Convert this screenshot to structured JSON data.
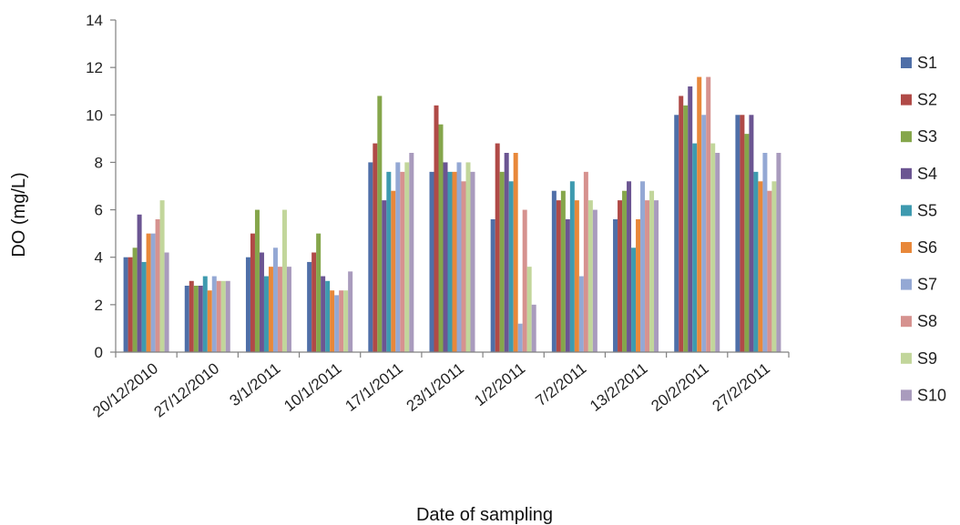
{
  "chart_data": {
    "type": "bar",
    "title": "",
    "xlabel": "Date of sampling",
    "ylabel": "DO (mg/L)",
    "ylim": [
      0,
      14
    ],
    "yticks": [
      "0",
      "2",
      "4",
      "6",
      "8",
      "10",
      "12",
      "14"
    ],
    "grid": false,
    "legend_position": "right",
    "categories": [
      "20/12/2010",
      "27/12/2010",
      "3/1/2011",
      "10/1/2011",
      "17/1/2011",
      "23/1/2011",
      "1/2/2011",
      "7/2/2011",
      "13/2/2011",
      "20/2/2011",
      "27/2/2011"
    ],
    "series": [
      {
        "name": "S1",
        "color": "#4f6fa8",
        "values": [
          4.0,
          2.8,
          4.0,
          3.8,
          8.0,
          7.6,
          5.6,
          6.8,
          5.6,
          10.0,
          10.0
        ]
      },
      {
        "name": "S2",
        "color": "#b04a47",
        "values": [
          4.0,
          3.0,
          5.0,
          4.2,
          8.8,
          10.4,
          8.8,
          6.4,
          6.4,
          10.8,
          10.0
        ]
      },
      {
        "name": "S3",
        "color": "#85a64b",
        "values": [
          4.4,
          2.8,
          6.0,
          5.0,
          10.8,
          9.6,
          7.6,
          6.8,
          6.8,
          10.4,
          9.2
        ]
      },
      {
        "name": "S4",
        "color": "#6b5592",
        "values": [
          5.8,
          2.8,
          4.2,
          3.2,
          6.4,
          8.0,
          8.4,
          5.6,
          7.2,
          11.2,
          10.0
        ]
      },
      {
        "name": "S5",
        "color": "#3e9aaf",
        "values": [
          3.8,
          3.2,
          3.2,
          3.0,
          7.6,
          7.6,
          7.2,
          7.2,
          4.4,
          8.8,
          7.6
        ]
      },
      {
        "name": "S6",
        "color": "#e8883a",
        "values": [
          5.0,
          2.6,
          3.6,
          2.6,
          6.8,
          7.6,
          8.4,
          6.4,
          5.6,
          11.6,
          7.2
        ]
      },
      {
        "name": "S7",
        "color": "#94a8d4",
        "values": [
          5.0,
          3.2,
          4.4,
          2.4,
          8.0,
          8.0,
          1.2,
          3.2,
          7.2,
          10.0,
          8.4
        ]
      },
      {
        "name": "S8",
        "color": "#d6928f",
        "values": [
          5.6,
          3.0,
          3.6,
          2.6,
          7.6,
          7.2,
          6.0,
          7.6,
          6.4,
          11.6,
          6.8
        ]
      },
      {
        "name": "S9",
        "color": "#c2d69b",
        "values": [
          6.4,
          3.0,
          6.0,
          2.6,
          8.0,
          8.0,
          3.6,
          6.4,
          6.8,
          8.8,
          7.2
        ]
      },
      {
        "name": "S10",
        "color": "#a99bbd",
        "values": [
          4.2,
          3.0,
          3.6,
          3.4,
          8.4,
          7.6,
          2.0,
          6.0,
          6.4,
          8.4,
          8.4
        ]
      }
    ]
  }
}
